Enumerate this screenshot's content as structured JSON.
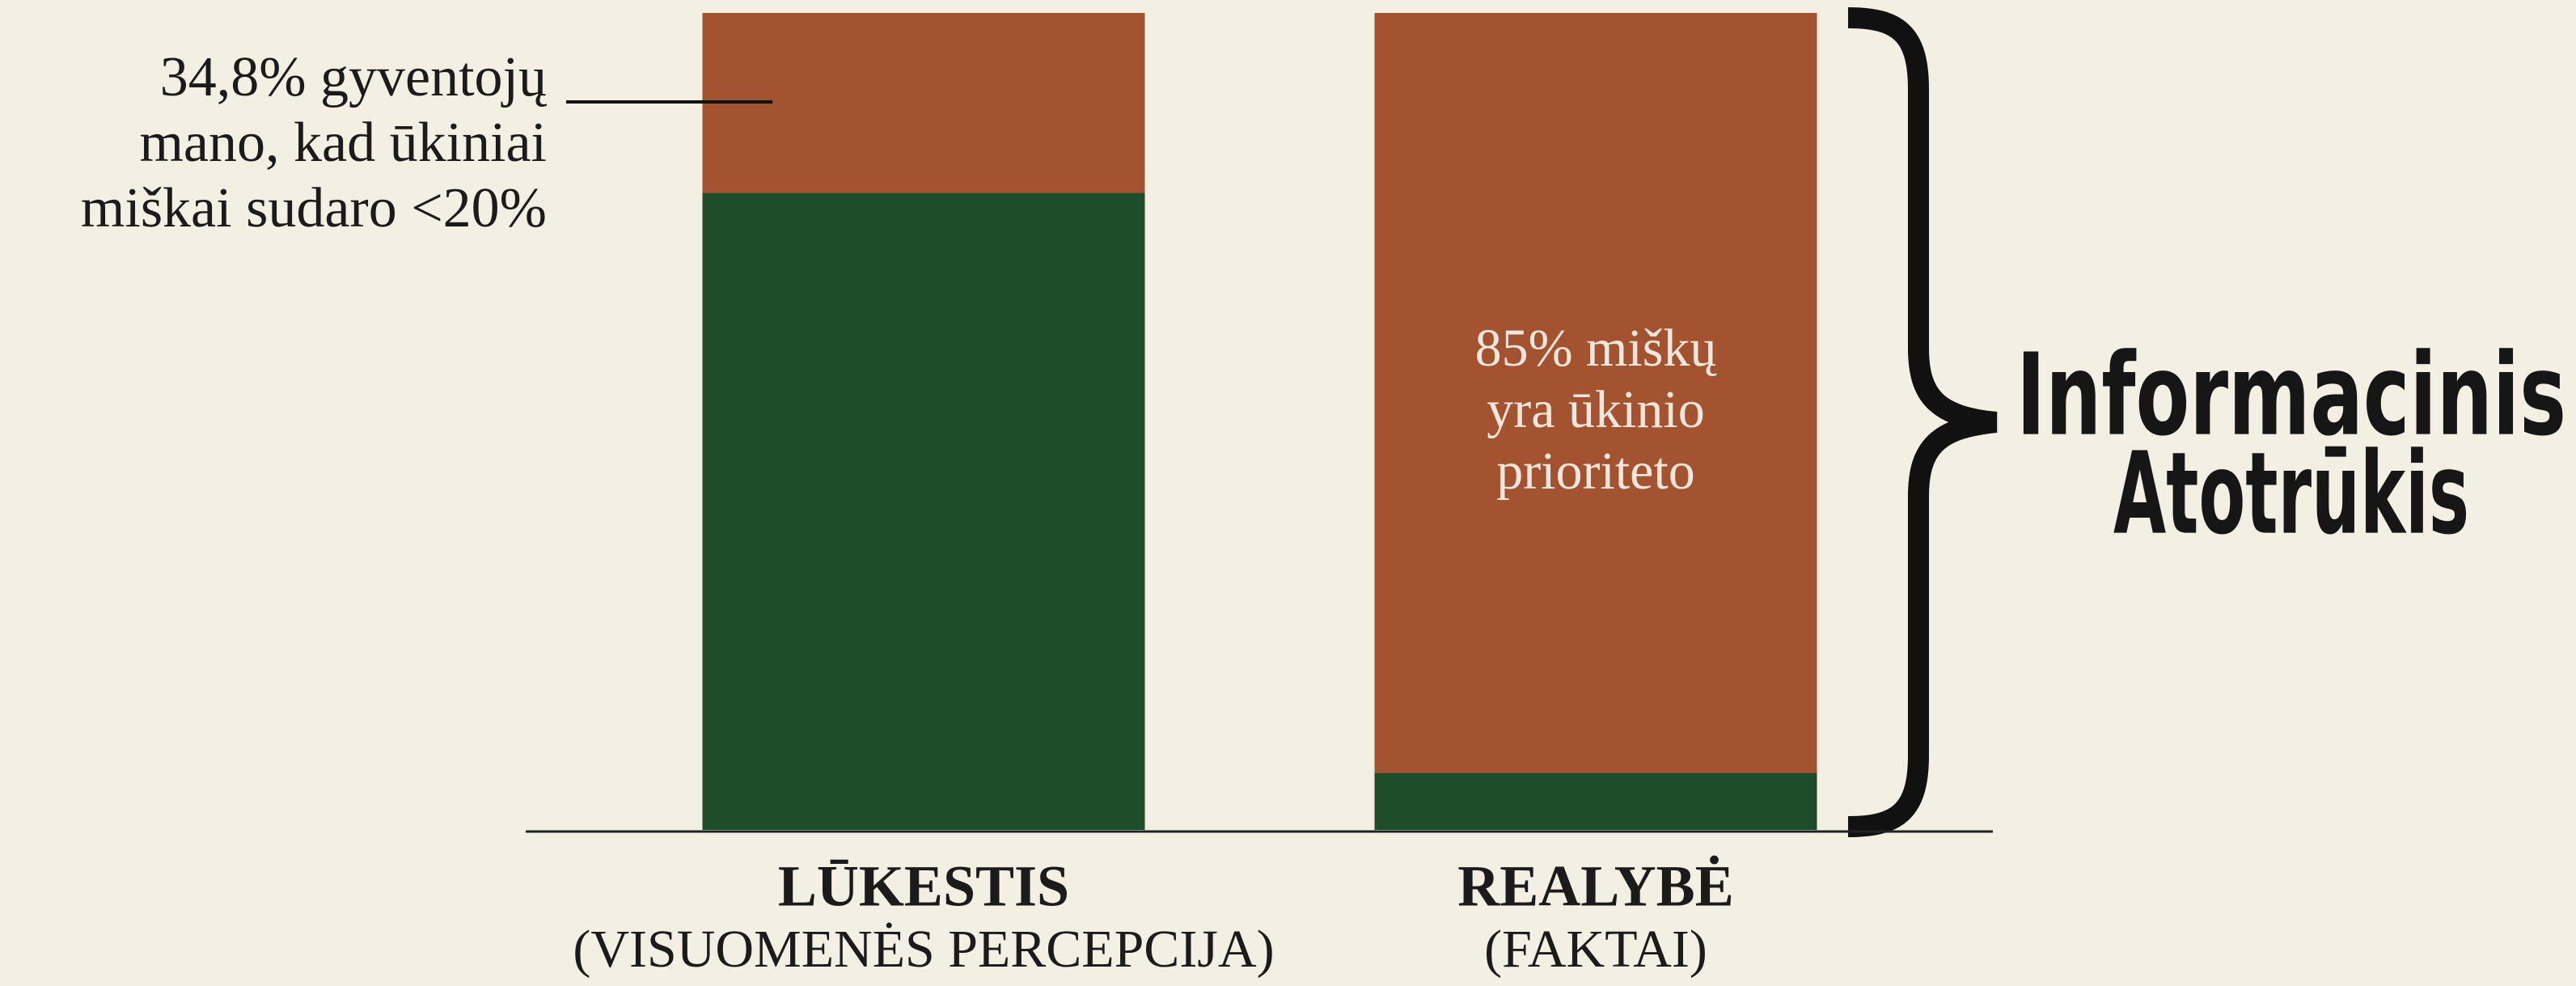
{
  "chart_data": {
    "type": "stacked_bar",
    "categories": [
      "LŪKESTIS",
      "REALYBĖ"
    ],
    "category_notes": [
      "(VISUOMENĖS PERCEPCIJA)",
      "(FAKTAI)"
    ],
    "series": [
      {
        "color": "#1e4d2b",
        "values": [
          78,
          7
        ]
      },
      {
        "color": "#a3532f",
        "values": [
          22,
          93
        ]
      }
    ],
    "ylim": [
      0,
      100
    ],
    "annotations": {
      "left": [
        "34,8% gyventojų",
        "mano, kad ūkiniai",
        "miškai sudaro <20%"
      ],
      "bar": [
        "85% miškų",
        "yra ūkinio",
        "prioriteto"
      ],
      "brace": [
        "Informacinis",
        "Atotrūkis"
      ]
    }
  }
}
